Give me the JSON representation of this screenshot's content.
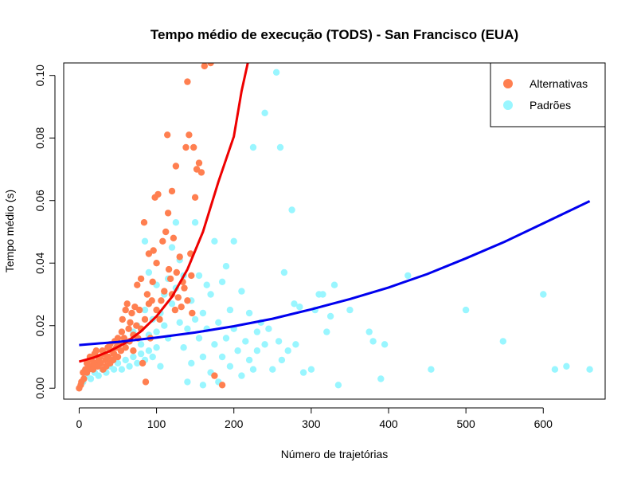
{
  "chart_data": {
    "type": "scatter",
    "title": "Tempo médio de execução (TODS) - San Francisco (EUA)",
    "xlabel": "Número de trajetórias",
    "ylabel": "Tempo médio (s)",
    "xlim": [
      -20,
      680
    ],
    "ylim": [
      -0.0035,
      0.104
    ],
    "x_ticks": [
      0,
      100,
      200,
      300,
      400,
      500,
      600
    ],
    "y_ticks": [
      0.0,
      0.02,
      0.04,
      0.06,
      0.08,
      0.1
    ],
    "y_tick_labels": [
      "0.00",
      "0.02",
      "0.04",
      "0.06",
      "0.08",
      "0.10"
    ],
    "grid": false,
    "legend_position": "top-right",
    "series": [
      {
        "name": "Alternativas",
        "color": "#FF7F50",
        "points": [
          [
            0,
            0.0
          ],
          [
            2,
            0.001
          ],
          [
            3,
            0.002
          ],
          [
            5,
            0.005
          ],
          [
            6,
            0.003
          ],
          [
            8,
            0.006
          ],
          [
            10,
            0.005
          ],
          [
            10,
            0.008
          ],
          [
            12,
            0.006
          ],
          [
            14,
            0.01
          ],
          [
            15,
            0.007
          ],
          [
            16,
            0.009
          ],
          [
            18,
            0.006
          ],
          [
            20,
            0.011
          ],
          [
            20,
            0.008
          ],
          [
            22,
            0.012
          ],
          [
            24,
            0.007
          ],
          [
            25,
            0.009
          ],
          [
            27,
            0.01
          ],
          [
            28,
            0.008
          ],
          [
            30,
            0.012
          ],
          [
            31,
            0.006
          ],
          [
            33,
            0.011
          ],
          [
            34,
            0.009
          ],
          [
            35,
            0.007
          ],
          [
            37,
            0.013
          ],
          [
            38,
            0.01
          ],
          [
            40,
            0.008
          ],
          [
            40,
            0.014
          ],
          [
            42,
            0.012
          ],
          [
            44,
            0.009
          ],
          [
            45,
            0.011
          ],
          [
            46,
            0.015
          ],
          [
            48,
            0.013
          ],
          [
            50,
            0.01
          ],
          [
            50,
            0.016
          ],
          [
            52,
            0.014
          ],
          [
            54,
            0.012
          ],
          [
            55,
            0.018
          ],
          [
            56,
            0.022
          ],
          [
            58,
            0.016
          ],
          [
            60,
            0.025
          ],
          [
            60,
            0.013
          ],
          [
            62,
            0.027
          ],
          [
            64,
            0.019
          ],
          [
            65,
            0.015
          ],
          [
            66,
            0.021
          ],
          [
            68,
            0.024
          ],
          [
            70,
            0.017
          ],
          [
            70,
            0.012
          ],
          [
            72,
            0.026
          ],
          [
            74,
            0.02
          ],
          [
            75,
            0.033
          ],
          [
            76,
            0.016
          ],
          [
            78,
            0.025
          ],
          [
            80,
            0.019
          ],
          [
            80,
            0.035
          ],
          [
            82,
            0.008
          ],
          [
            84,
            0.053
          ],
          [
            85,
            0.022
          ],
          [
            86,
            0.002
          ],
          [
            88,
            0.03
          ],
          [
            90,
            0.027
          ],
          [
            90,
            0.043
          ],
          [
            92,
            0.016
          ],
          [
            94,
            0.028
          ],
          [
            95,
            0.034
          ],
          [
            96,
            0.044
          ],
          [
            98,
            0.061
          ],
          [
            100,
            0.025
          ],
          [
            100,
            0.04
          ],
          [
            102,
            0.062
          ],
          [
            104,
            0.022
          ],
          [
            106,
            0.028
          ],
          [
            108,
            0.047
          ],
          [
            110,
            0.031
          ],
          [
            112,
            0.05
          ],
          [
            114,
            0.081
          ],
          [
            115,
            0.056
          ],
          [
            116,
            0.038
          ],
          [
            118,
            0.035
          ],
          [
            120,
            0.063
          ],
          [
            120,
            0.03
          ],
          [
            122,
            0.048
          ],
          [
            124,
            0.025
          ],
          [
            125,
            0.071
          ],
          [
            126,
            0.037
          ],
          [
            128,
            0.029
          ],
          [
            130,
            0.042
          ],
          [
            132,
            0.026
          ],
          [
            134,
            0.034
          ],
          [
            136,
            0.032
          ],
          [
            138,
            0.077
          ],
          [
            140,
            0.098
          ],
          [
            140,
            0.028
          ],
          [
            142,
            0.081
          ],
          [
            144,
            0.043
          ],
          [
            145,
            0.036
          ],
          [
            146,
            0.024
          ],
          [
            148,
            0.077
          ],
          [
            150,
            0.061
          ],
          [
            152,
            0.07
          ],
          [
            155,
            0.072
          ],
          [
            158,
            0.069
          ],
          [
            162,
            0.103
          ],
          [
            170,
            0.104
          ],
          [
            175,
            0.004
          ],
          [
            185,
            0.001
          ]
        ]
      },
      {
        "name": "Padrões",
        "color": "#99F6FF",
        "points": [
          [
            5,
            0.002
          ],
          [
            10,
            0.004
          ],
          [
            15,
            0.003
          ],
          [
            20,
            0.005
          ],
          [
            25,
            0.004
          ],
          [
            30,
            0.006
          ],
          [
            35,
            0.005
          ],
          [
            40,
            0.007
          ],
          [
            45,
            0.006
          ],
          [
            50,
            0.008
          ],
          [
            55,
            0.006
          ],
          [
            60,
            0.009
          ],
          [
            65,
            0.007
          ],
          [
            70,
            0.01
          ],
          [
            75,
            0.008
          ],
          [
            80,
            0.011
          ],
          [
            85,
            0.009
          ],
          [
            90,
            0.012
          ],
          [
            95,
            0.01
          ],
          [
            100,
            0.013
          ],
          [
            60,
            0.015
          ],
          [
            70,
            0.018
          ],
          [
            75,
            0.02
          ],
          [
            80,
            0.014
          ],
          [
            85,
            0.025
          ],
          [
            90,
            0.017
          ],
          [
            95,
            0.022
          ],
          [
            100,
            0.018
          ],
          [
            105,
            0.024
          ],
          [
            110,
            0.02
          ],
          [
            110,
            0.03
          ],
          [
            115,
            0.016
          ],
          [
            120,
            0.027
          ],
          [
            120,
            0.045
          ],
          [
            125,
            0.032
          ],
          [
            125,
            0.053
          ],
          [
            130,
            0.021
          ],
          [
            135,
            0.036
          ],
          [
            135,
            0.013
          ],
          [
            140,
            0.019
          ],
          [
            145,
            0.028
          ],
          [
            145,
            0.008
          ],
          [
            150,
            0.022
          ],
          [
            150,
            0.053
          ],
          [
            155,
            0.016
          ],
          [
            155,
            0.036
          ],
          [
            160,
            0.024
          ],
          [
            160,
            0.01
          ],
          [
            165,
            0.033
          ],
          [
            165,
            0.019
          ],
          [
            170,
            0.03
          ],
          [
            170,
            0.005
          ],
          [
            175,
            0.047
          ],
          [
            175,
            0.014
          ],
          [
            180,
            0.021
          ],
          [
            180,
            0.002
          ],
          [
            185,
            0.034
          ],
          [
            185,
            0.01
          ],
          [
            190,
            0.039
          ],
          [
            190,
            0.016
          ],
          [
            195,
            0.025
          ],
          [
            195,
            0.007
          ],
          [
            200,
            0.047
          ],
          [
            200,
            0.019
          ],
          [
            205,
            0.012
          ],
          [
            210,
            0.031
          ],
          [
            210,
            0.004
          ],
          [
            215,
            0.015
          ],
          [
            220,
            0.024
          ],
          [
            220,
            0.009
          ],
          [
            225,
            0.006
          ],
          [
            225,
            0.077
          ],
          [
            230,
            0.018
          ],
          [
            230,
            0.012
          ],
          [
            235,
            0.021
          ],
          [
            240,
            0.088
          ],
          [
            240,
            0.014
          ],
          [
            245,
            0.019
          ],
          [
            250,
            0.006
          ],
          [
            255,
            0.101
          ],
          [
            258,
            0.015
          ],
          [
            260,
            0.077
          ],
          [
            262,
            0.009
          ],
          [
            265,
            0.037
          ],
          [
            270,
            0.012
          ],
          [
            275,
            0.057
          ],
          [
            278,
            0.027
          ],
          [
            280,
            0.014
          ],
          [
            285,
            0.026
          ],
          [
            290,
            0.005
          ],
          [
            300,
            0.006
          ],
          [
            305,
            0.025
          ],
          [
            310,
            0.03
          ],
          [
            315,
            0.03
          ],
          [
            320,
            0.018
          ],
          [
            325,
            0.023
          ],
          [
            330,
            0.033
          ],
          [
            335,
            0.001
          ],
          [
            350,
            0.025
          ],
          [
            375,
            0.018
          ],
          [
            380,
            0.015
          ],
          [
            390,
            0.003
          ],
          [
            395,
            0.014
          ],
          [
            425,
            0.036
          ],
          [
            455,
            0.006
          ],
          [
            500,
            0.025
          ],
          [
            548,
            0.015
          ],
          [
            600,
            0.03
          ],
          [
            615,
            0.006
          ],
          [
            630,
            0.007
          ],
          [
            660,
            0.006
          ],
          [
            100,
            0.033
          ],
          [
            90,
            0.037
          ],
          [
            85,
            0.047
          ],
          [
            115,
            0.035
          ],
          [
            130,
            0.041
          ],
          [
            105,
            0.007
          ],
          [
            140,
            0.002
          ],
          [
            160,
            0.001
          ]
        ]
      }
    ],
    "fit_lines": [
      {
        "series": "Alternativas",
        "color": "#EE0000",
        "points": [
          [
            0,
            0.0085
          ],
          [
            20,
            0.0099
          ],
          [
            40,
            0.0119
          ],
          [
            60,
            0.0145
          ],
          [
            80,
            0.0182
          ],
          [
            100,
            0.023
          ],
          [
            120,
            0.0292
          ],
          [
            140,
            0.038
          ],
          [
            160,
            0.05
          ],
          [
            180,
            0.066
          ],
          [
            200,
            0.0805
          ],
          [
            210,
            0.095
          ],
          [
            218,
            0.104
          ]
        ]
      },
      {
        "series": "Padrões",
        "color": "#0000EE",
        "points": [
          [
            0,
            0.0138
          ],
          [
            50,
            0.0148
          ],
          [
            100,
            0.0162
          ],
          [
            150,
            0.0178
          ],
          [
            200,
            0.0198
          ],
          [
            250,
            0.0222
          ],
          [
            300,
            0.0252
          ],
          [
            350,
            0.0285
          ],
          [
            400,
            0.0322
          ],
          [
            450,
            0.0365
          ],
          [
            500,
            0.0415
          ],
          [
            550,
            0.0468
          ],
          [
            600,
            0.0527
          ],
          [
            660,
            0.0598
          ]
        ]
      }
    ]
  }
}
